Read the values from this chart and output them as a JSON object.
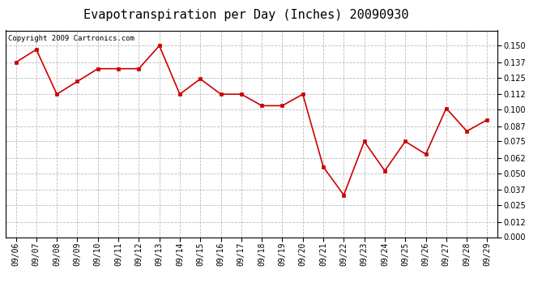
{
  "title": "Evapotranspiration per Day (Inches) 20090930",
  "copyright_text": "Copyright 2009 Cartronics.com",
  "dates": [
    "09/06",
    "09/07",
    "09/08",
    "09/09",
    "09/10",
    "09/11",
    "09/12",
    "09/13",
    "09/14",
    "09/15",
    "09/16",
    "09/17",
    "09/18",
    "09/19",
    "09/20",
    "09/21",
    "09/22",
    "09/23",
    "09/24",
    "09/25",
    "09/26",
    "09/27",
    "09/28",
    "09/29"
  ],
  "values": [
    0.137,
    0.147,
    0.112,
    0.122,
    0.132,
    0.132,
    0.132,
    0.15,
    0.112,
    0.124,
    0.112,
    0.112,
    0.103,
    0.103,
    0.112,
    0.055,
    0.033,
    0.075,
    0.052,
    0.075,
    0.065,
    0.101,
    0.083,
    0.092
  ],
  "line_color": "#cc0000",
  "marker_color": "#cc0000",
  "bg_color": "#ffffff",
  "plot_bg_color": "#ffffff",
  "grid_color": "#bbbbbb",
  "ylim": [
    0.0,
    0.162
  ],
  "yticks": [
    0.0,
    0.012,
    0.025,
    0.037,
    0.05,
    0.062,
    0.075,
    0.087,
    0.1,
    0.112,
    0.125,
    0.137,
    0.15
  ],
  "title_fontsize": 11,
  "tick_fontsize": 7,
  "copyright_fontsize": 6.5
}
